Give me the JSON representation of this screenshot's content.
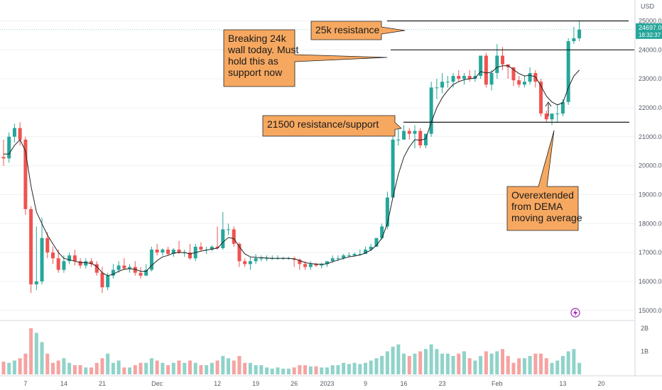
{
  "colors": {
    "up": "#26a69a",
    "down": "#ef5350",
    "up_vol": "#8fd3c9",
    "down_vol": "#f5a3a1",
    "callout_fill": "#f7a860",
    "callout_stroke": "#222222",
    "grid": "#eef0f3",
    "axis_text": "#555b66",
    "price_badge": "#26a69a"
  },
  "price_axis": {
    "currency": "USD",
    "tick_labels": [
      "25000.0",
      "24000.0",
      "23000.0",
      "22000.0",
      "21000.0",
      "20000.0",
      "19000.0",
      "18000.0",
      "17000.0",
      "16000.0",
      "15000.0"
    ],
    "current_price": "24697.0",
    "countdown": "18:32:37"
  },
  "volume_axis": {
    "tick_labels": [
      "2B",
      "1B"
    ]
  },
  "time_axis": {
    "tick_labels": [
      "7",
      "14",
      "21",
      "Dec",
      "12",
      "19",
      "26",
      "2023",
      "9",
      "16",
      "23",
      "Feb",
      "13",
      "20"
    ]
  },
  "alert_icon": "lightning-icon",
  "annotations": {
    "resistance_25k": "25k resistance",
    "breaking_24k": [
      "Breaking 24k",
      "wall today. Must",
      "hold this as",
      "support now"
    ],
    "resistance_21500": "21500 resistance/support",
    "overextended": [
      "Overextended",
      "from DEMA",
      "moving average"
    ]
  },
  "chart_data": {
    "type": "candlestick",
    "title": "",
    "xlabel": "",
    "ylabel": "USD",
    "ylim": [
      14700,
      25600
    ],
    "grid": true,
    "legend": "none",
    "x": [
      "Nov 3",
      "Nov 4",
      "Nov 5",
      "Nov 6",
      "Nov 7",
      "Nov 8",
      "Nov 9",
      "Nov 10",
      "Nov 11",
      "Nov 12",
      "Nov 13",
      "Nov 14",
      "Nov 15",
      "Nov 16",
      "Nov 17",
      "Nov 18",
      "Nov 19",
      "Nov 20",
      "Nov 21",
      "Nov 22",
      "Nov 23",
      "Nov 24",
      "Nov 25",
      "Nov 26",
      "Nov 27",
      "Nov 28",
      "Nov 29",
      "Nov 30",
      "Dec 1",
      "Dec 2",
      "Dec 3",
      "Dec 4",
      "Dec 5",
      "Dec 6",
      "Dec 7",
      "Dec 8",
      "Dec 9",
      "Dec 10",
      "Dec 11",
      "Dec 12",
      "Dec 13",
      "Dec 14",
      "Dec 15",
      "Dec 16",
      "Dec 17",
      "Dec 18",
      "Dec 19",
      "Dec 20",
      "Dec 21",
      "Dec 22",
      "Dec 23",
      "Dec 24",
      "Dec 25",
      "Dec 26",
      "Dec 27",
      "Dec 28",
      "Dec 29",
      "Dec 30",
      "Dec 31",
      "Jan 1",
      "Jan 2",
      "Jan 3",
      "Jan 4",
      "Jan 5",
      "Jan 6",
      "Jan 7",
      "Jan 8",
      "Jan 9",
      "Jan 10",
      "Jan 11",
      "Jan 12",
      "Jan 13",
      "Jan 14",
      "Jan 15",
      "Jan 16",
      "Jan 17",
      "Jan 18",
      "Jan 19",
      "Jan 20",
      "Jan 21",
      "Jan 22",
      "Jan 23",
      "Jan 24",
      "Jan 25",
      "Jan 26",
      "Jan 27",
      "Jan 28",
      "Jan 29",
      "Jan 30",
      "Jan 31",
      "Feb 1",
      "Feb 2",
      "Feb 3",
      "Feb 4",
      "Feb 5",
      "Feb 6",
      "Feb 7",
      "Feb 8",
      "Feb 9",
      "Feb 10",
      "Feb 11",
      "Feb 12",
      "Feb 13",
      "Feb 14",
      "Feb 15",
      "Feb 16"
    ],
    "series": [
      {
        "type": "candles",
        "open": [
          20300,
          20250,
          21000,
          21300,
          20900,
          18500,
          15900,
          16000,
          17500,
          17000,
          16800,
          16400,
          16700,
          16900,
          16700,
          16550,
          16700,
          16600,
          16300,
          15800,
          16200,
          16400,
          16550,
          16450,
          16500,
          16300,
          16200,
          16400,
          17100,
          17000,
          17100,
          16950,
          17100,
          17000,
          17000,
          16800,
          17200,
          17100,
          17100,
          17200,
          17150,
          17800,
          17800,
          17300,
          16700,
          16600,
          16700,
          16800,
          16800,
          16800,
          16800,
          16800,
          16800,
          16800,
          16750,
          16600,
          16500,
          16600,
          16550,
          16600,
          16700,
          16800,
          16800,
          16900,
          16900,
          16950,
          16950,
          17100,
          17200,
          17500,
          17900,
          18900,
          20900,
          20900,
          21200,
          21100,
          21200,
          20700,
          21100,
          22700,
          22700,
          22900,
          22900,
          23100,
          23000,
          23100,
          23000,
          23100,
          23800,
          22800,
          23200,
          23800,
          23500,
          23400,
          22950,
          22800,
          22900,
          23200,
          22900,
          21800,
          21600,
          21800,
          21800,
          22200,
          24300,
          24400
        ],
        "high": [
          20900,
          21150,
          21450,
          21500,
          21000,
          18600,
          17900,
          18200,
          17700,
          17200,
          17100,
          16900,
          17000,
          17100,
          16800,
          16800,
          16800,
          16700,
          16500,
          16300,
          16600,
          16700,
          16800,
          16600,
          16700,
          16500,
          16600,
          17200,
          17300,
          17150,
          17200,
          17150,
          17400,
          17100,
          17300,
          17300,
          17350,
          17200,
          17250,
          17900,
          18400,
          18000,
          17900,
          17350,
          16800,
          16850,
          16950,
          16900,
          16900,
          16900,
          16900,
          16850,
          16850,
          16850,
          16800,
          16700,
          16700,
          16650,
          16650,
          16700,
          16900,
          16900,
          16950,
          17000,
          17000,
          17100,
          17200,
          17300,
          17500,
          18000,
          19100,
          21000,
          21300,
          21400,
          21300,
          21400,
          21300,
          21100,
          22900,
          23000,
          23200,
          23100,
          23200,
          23300,
          23200,
          23300,
          23300,
          23800,
          23900,
          23300,
          24200,
          24100,
          23500,
          23400,
          23100,
          23100,
          23400,
          23300,
          23000,
          21900,
          21800,
          22100,
          22300,
          24400,
          24800,
          25000
        ],
        "low": [
          20000,
          20100,
          20800,
          20700,
          18300,
          15600,
          15700,
          15900,
          16800,
          16600,
          16300,
          16300,
          16600,
          16550,
          16450,
          16450,
          16500,
          16200,
          15600,
          15700,
          16100,
          16300,
          16400,
          16300,
          16200,
          16100,
          16200,
          16350,
          16900,
          16900,
          16900,
          16850,
          16950,
          16850,
          16750,
          16700,
          17050,
          16950,
          17050,
          17100,
          17100,
          17600,
          17200,
          16500,
          16500,
          16400,
          16600,
          16700,
          16700,
          16750,
          16750,
          16750,
          16750,
          16500,
          16400,
          16400,
          16400,
          16500,
          16450,
          16500,
          16650,
          16700,
          16750,
          16850,
          16850,
          16900,
          16950,
          17050,
          17200,
          17450,
          17800,
          18900,
          20700,
          20900,
          20900,
          20600,
          20600,
          20600,
          21000,
          22300,
          22500,
          22700,
          22700,
          22900,
          22800,
          22900,
          22900,
          23000,
          22700,
          22600,
          23000,
          23300,
          23000,
          22750,
          22700,
          22700,
          22800,
          22700,
          21700,
          21500,
          21400,
          21500,
          21700,
          22100,
          24200,
          24300
        ],
        "close": [
          20250,
          21000,
          21300,
          20900,
          18500,
          15900,
          16000,
          17500,
          17000,
          16800,
          16400,
          16700,
          16900,
          16700,
          16550,
          16700,
          16600,
          16300,
          15800,
          16200,
          16400,
          16550,
          16450,
          16500,
          16300,
          16200,
          16400,
          17100,
          17000,
          17100,
          16950,
          17100,
          17000,
          17000,
          16800,
          17200,
          17100,
          17100,
          17200,
          17150,
          17800,
          17800,
          17300,
          16700,
          16600,
          16700,
          16800,
          16800,
          16800,
          16800,
          16800,
          16800,
          16800,
          16750,
          16600,
          16500,
          16600,
          16550,
          16600,
          16700,
          16800,
          16800,
          16900,
          16900,
          16950,
          16950,
          17100,
          17200,
          17500,
          17900,
          18900,
          20900,
          20900,
          21200,
          21100,
          21200,
          20700,
          21100,
          22700,
          22700,
          22900,
          22900,
          23100,
          23000,
          23100,
          23000,
          23100,
          23800,
          22800,
          23200,
          23800,
          23500,
          23400,
          22950,
          22800,
          22900,
          23200,
          22900,
          21800,
          21600,
          21800,
          21800,
          22200,
          24300,
          24400,
          24697
        ]
      },
      {
        "type": "line",
        "values": [
          20400,
          20400,
          20700,
          20900,
          20500,
          19300,
          18400,
          18000,
          17600,
          17300,
          17000,
          16800,
          16750,
          16700,
          16650,
          16650,
          16620,
          16520,
          16300,
          16200,
          16250,
          16350,
          16420,
          16440,
          16420,
          16350,
          16350,
          16550,
          16720,
          16850,
          16900,
          16980,
          17000,
          17000,
          16950,
          17000,
          17050,
          17080,
          17120,
          17150,
          17350,
          17520,
          17480,
          17200,
          16950,
          16850,
          16830,
          16820,
          16810,
          16800,
          16800,
          16800,
          16800,
          16780,
          16720,
          16650,
          16620,
          16600,
          16590,
          16610,
          16680,
          16740,
          16800,
          16850,
          16880,
          16910,
          16990,
          17080,
          17250,
          17500,
          18000,
          18900,
          19700,
          20300,
          20650,
          20900,
          20880,
          20930,
          21500,
          22000,
          22350,
          22600,
          22800,
          22900,
          22970,
          23000,
          23030,
          23250,
          23200,
          23230,
          23400,
          23450,
          23450,
          23320,
          23180,
          23100,
          23120,
          23070,
          22750,
          22400,
          22200,
          22100,
          22170,
          22700,
          23100,
          23300
        ]
      },
      {
        "type": "volume",
        "values": [
          0.55,
          0.5,
          0.6,
          0.7,
          0.9,
          2.0,
          1.8,
          1.4,
          0.9,
          0.5,
          0.6,
          0.7,
          0.5,
          0.4,
          0.4,
          0.3,
          0.3,
          0.5,
          0.7,
          0.9,
          0.5,
          0.6,
          0.3,
          0.3,
          0.4,
          0.5,
          0.5,
          0.7,
          0.6,
          0.5,
          0.4,
          0.5,
          0.6,
          0.5,
          0.6,
          0.5,
          0.4,
          0.4,
          0.5,
          0.6,
          0.8,
          0.7,
          0.6,
          0.8,
          0.5,
          0.5,
          0.4,
          0.4,
          0.3,
          0.25,
          0.3,
          0.25,
          0.25,
          0.3,
          0.4,
          0.4,
          0.35,
          0.35,
          0.3,
          0.3,
          0.4,
          0.4,
          0.5,
          0.45,
          0.5,
          0.45,
          0.5,
          0.6,
          0.7,
          0.8,
          1.0,
          1.2,
          1.3,
          0.9,
          0.8,
          0.9,
          1.0,
          1.1,
          1.3,
          1.1,
          0.9,
          0.9,
          0.8,
          0.9,
          1.0,
          0.7,
          0.6,
          0.8,
          1.0,
          0.9,
          1.0,
          1.1,
          0.8,
          0.5,
          0.7,
          0.7,
          0.8,
          0.9,
          0.9,
          0.7,
          0.5,
          0.6,
          0.8,
          1.0,
          1.1,
          0.5
        ]
      }
    ],
    "levels": [
      {
        "name": "25k resistance",
        "y": 25000
      },
      {
        "name": "24k",
        "y": 24000
      },
      {
        "name": "21500 resistance/support",
        "y": 21500
      }
    ]
  }
}
